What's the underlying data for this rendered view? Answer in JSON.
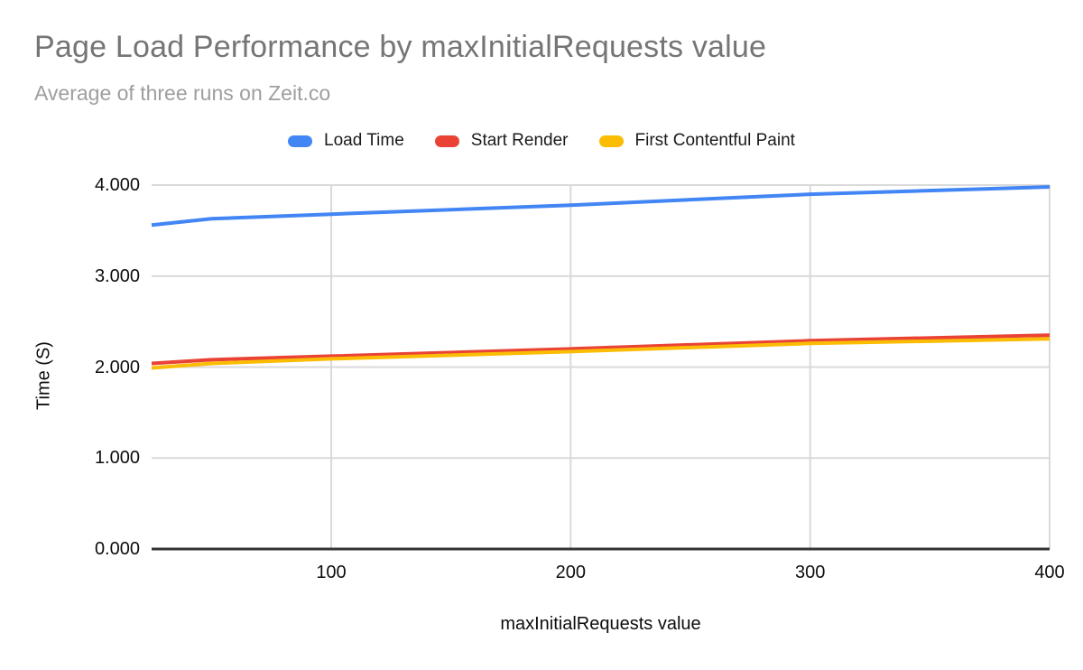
{
  "chart_data": {
    "type": "line",
    "title": "Page Load Performance by maxInitialRequests value",
    "subtitle": "Average of three runs on Zeit.co",
    "xlabel": "maxInitialRequests value",
    "ylabel": "Time (S)",
    "x": [
      25,
      50,
      100,
      200,
      300,
      400
    ],
    "series": [
      {
        "name": "Load Time",
        "color": "#4285f4",
        "values": [
          3.56,
          3.63,
          3.68,
          3.78,
          3.9,
          3.98
        ]
      },
      {
        "name": "Start Render",
        "color": "#ea4335",
        "values": [
          2.04,
          2.08,
          2.12,
          2.2,
          2.29,
          2.35
        ]
      },
      {
        "name": "First Contentful Paint",
        "color": "#fbbc04",
        "values": [
          1.99,
          2.04,
          2.09,
          2.17,
          2.26,
          2.31
        ]
      }
    ],
    "xlim": [
      25,
      400
    ],
    "ylim": [
      0,
      4
    ],
    "x_ticks": [
      {
        "value": 100,
        "label": "100"
      },
      {
        "value": 200,
        "label": "200"
      },
      {
        "value": 300,
        "label": "300"
      },
      {
        "value": 400,
        "label": "400"
      }
    ],
    "y_ticks": [
      {
        "value": 0,
        "label": "0.000"
      },
      {
        "value": 1,
        "label": "1.000"
      },
      {
        "value": 2,
        "label": "2.000"
      },
      {
        "value": 3,
        "label": "3.000"
      },
      {
        "value": 4,
        "label": "4.000"
      }
    ],
    "grid": true,
    "legend_position": "top"
  },
  "colors": {
    "title": "#757575",
    "subtitle": "#9e9e9e",
    "gridline": "#d9d9d9",
    "axis_line": "#333333",
    "tick_text": "#0d0d0d",
    "background": "#ffffff"
  }
}
